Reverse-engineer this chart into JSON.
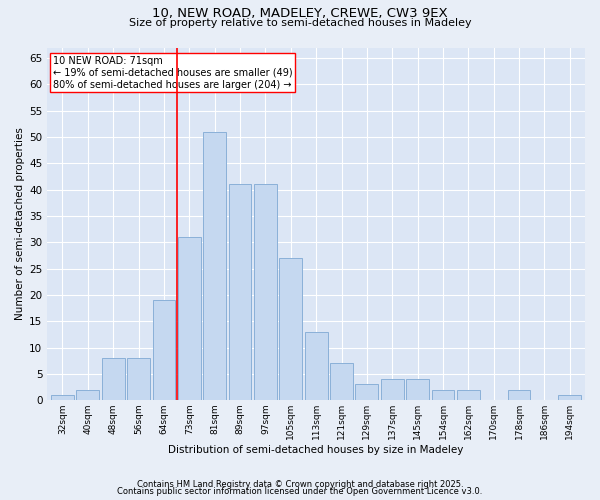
{
  "title1": "10, NEW ROAD, MADELEY, CREWE, CW3 9EX",
  "title2": "Size of property relative to semi-detached houses in Madeley",
  "xlabel": "Distribution of semi-detached houses by size in Madeley",
  "ylabel": "Number of semi-detached properties",
  "categories": [
    "32sqm",
    "40sqm",
    "48sqm",
    "56sqm",
    "64sqm",
    "73sqm",
    "81sqm",
    "89sqm",
    "97sqm",
    "105sqm",
    "113sqm",
    "121sqm",
    "129sqm",
    "137sqm",
    "145sqm",
    "154sqm",
    "162sqm",
    "170sqm",
    "178sqm",
    "186sqm",
    "194sqm"
  ],
  "bar_heights": [
    1,
    2,
    8,
    8,
    19,
    31,
    51,
    41,
    41,
    27,
    13,
    7,
    3,
    4,
    4,
    2,
    2,
    0,
    2,
    0,
    1
  ],
  "bar_color": "#c5d8f0",
  "bar_edgecolor": "#8ab0d8",
  "vline_color": "red",
  "annotation_title": "10 NEW ROAD: 71sqm",
  "annotation_line1": "← 19% of semi-detached houses are smaller (49)",
  "annotation_line2": "80% of semi-detached houses are larger (204) →",
  "ylim": [
    0,
    67
  ],
  "yticks": [
    0,
    5,
    10,
    15,
    20,
    25,
    30,
    35,
    40,
    45,
    50,
    55,
    60,
    65
  ],
  "footnote1": "Contains HM Land Registry data © Crown copyright and database right 2025.",
  "footnote2": "Contains public sector information licensed under the Open Government Licence v3.0.",
  "bg_color": "#e8eef7",
  "plot_bg_color": "#dce6f5"
}
